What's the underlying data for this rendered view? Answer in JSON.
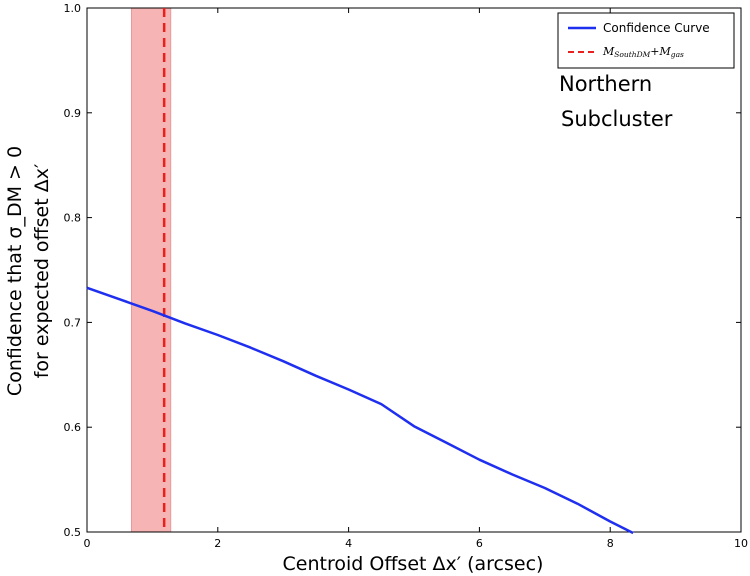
{
  "chart_data": {
    "type": "line",
    "xlabel": "Centroid Offset Δx′ (arcsec)",
    "ylabel_line1": "Confidence that σ_DM > 0",
    "ylabel_line2": "for expected offset Δx′",
    "xlim": [
      0,
      10
    ],
    "ylim": [
      0.5,
      1.0
    ],
    "x_ticks": [
      0,
      2,
      4,
      6,
      8,
      10
    ],
    "y_ticks": [
      0.5,
      0.6,
      0.7,
      0.8,
      0.9,
      1.0
    ],
    "x_tick_labels": [
      "0",
      "2",
      "4",
      "6",
      "8",
      "10"
    ],
    "y_tick_labels": [
      "0.5",
      "0.6",
      "0.7",
      "0.8",
      "0.9",
      "1.0"
    ],
    "grid": false,
    "legend_position": "top-right",
    "series": [
      {
        "name": "Confidence Curve",
        "color": "#1f2ff0",
        "style": "solid",
        "x": [
          0,
          0.5,
          1.0,
          1.5,
          2.0,
          2.5,
          3.0,
          3.5,
          4.0,
          4.5,
          5.0,
          5.5,
          6.0,
          6.5,
          7.0,
          7.5,
          8.0,
          8.35
        ],
        "y": [
          0.733,
          0.722,
          0.711,
          0.699,
          0.688,
          0.676,
          0.663,
          0.649,
          0.636,
          0.622,
          0.601,
          0.585,
          0.569,
          0.555,
          0.542,
          0.527,
          0.51,
          0.499
        ]
      }
    ],
    "vertical_line": {
      "label_main_1": "M",
      "label_sub_1": "SouthDM",
      "label_plus": "+",
      "label_main_2": "M",
      "label_sub_2": "gas",
      "x": 1.18,
      "color": "#e8211e",
      "style": "dashed"
    },
    "shaded_band": {
      "x_start": 0.68,
      "x_end": 1.28,
      "color": "#f7b4b4"
    },
    "annotation": {
      "line1": "Northern",
      "line2": "Subcluster"
    }
  }
}
